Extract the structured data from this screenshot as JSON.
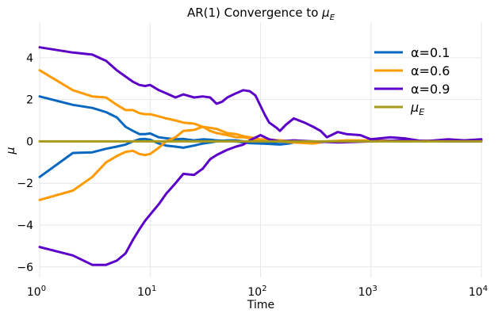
{
  "chart_data": {
    "type": "line",
    "title": {
      "main": "AR(1) Convergence to ",
      "math": "μ",
      "sub": "E"
    },
    "xlabel": "Time",
    "ylabel": "μ",
    "xscale": "log",
    "xlim": [
      1,
      10000
    ],
    "ylim": [
      -6.5,
      5.7
    ],
    "grid": true,
    "legend_position": "top-right",
    "x_ticks": [
      {
        "value": 1,
        "base": "10",
        "exp": "0"
      },
      {
        "value": 10,
        "base": "10",
        "exp": "1"
      },
      {
        "value": 100,
        "base": "10",
        "exp": "2"
      },
      {
        "value": 1000,
        "base": "10",
        "exp": "3"
      },
      {
        "value": 10000,
        "base": "10",
        "exp": "4"
      }
    ],
    "y_ticks": [
      {
        "value": -6,
        "label": "−6"
      },
      {
        "value": -4,
        "label": "−4"
      },
      {
        "value": -2,
        "label": "−2"
      },
      {
        "value": 0,
        "label": "0"
      },
      {
        "value": 2,
        "label": "2"
      },
      {
        "value": 4,
        "label": "4"
      }
    ],
    "series": [
      {
        "name": "α=0.1",
        "color": "#0868c0",
        "paths": [
          {
            "x": [
              1,
              2,
              3,
              4,
              5,
              6,
              7,
              8,
              9,
              10,
              12,
              14,
              17,
              20,
              25,
              30,
              35,
              40,
              50,
              60,
              70,
              80,
              100,
              120,
              150,
              180,
              200
            ],
            "y": [
              2.15,
              1.75,
              1.6,
              1.4,
              1.15,
              0.7,
              0.5,
              0.35,
              0.35,
              0.38,
              0.2,
              0.15,
              0.1,
              0.12,
              0.05,
              0.1,
              0.08,
              0.05,
              0.02,
              0.0,
              -0.05,
              -0.08,
              -0.1,
              -0.12,
              -0.15,
              -0.1,
              -0.05
            ]
          },
          {
            "x": [
              1,
              2,
              3,
              4,
              5,
              6,
              7,
              8,
              9,
              10,
              12,
              14,
              17,
              20,
              25,
              30,
              35,
              40,
              50,
              60,
              70,
              80,
              100,
              120,
              150,
              180,
              200
            ],
            "y": [
              -1.7,
              -0.55,
              -0.52,
              -0.35,
              -0.25,
              -0.15,
              0.0,
              0.1,
              0.12,
              0.08,
              -0.1,
              -0.2,
              -0.25,
              -0.3,
              -0.2,
              -0.1,
              -0.05,
              0.0,
              0.05,
              0.05,
              0.0,
              -0.05,
              -0.08,
              -0.05,
              -0.02,
              0.0,
              0.0
            ]
          }
        ]
      },
      {
        "name": "α=0.6",
        "color": "#ff9a00",
        "paths": [
          {
            "x": [
              1,
              2,
              3,
              4,
              5,
              6,
              7,
              8,
              9,
              10,
              12,
              14,
              17,
              20,
              25,
              30,
              35,
              40,
              50,
              60,
              70,
              80,
              100,
              150,
              200,
              300,
              400,
              600,
              1000,
              2000,
              5000,
              10000
            ],
            "y": [
              3.4,
              2.45,
              2.15,
              2.1,
              1.75,
              1.5,
              1.5,
              1.35,
              1.3,
              1.3,
              1.2,
              1.1,
              1.0,
              0.9,
              0.85,
              0.7,
              0.5,
              0.4,
              0.3,
              0.2,
              0.2,
              0.15,
              0.05,
              0.0,
              -0.05,
              -0.1,
              0.0,
              0.05,
              0.05,
              0.0,
              0.05,
              0.05
            ]
          },
          {
            "x": [
              1,
              2,
              3,
              4,
              5,
              6,
              7,
              8,
              9,
              10,
              12,
              14,
              17,
              20,
              25,
              30,
              35,
              40,
              50,
              60,
              70,
              80,
              100,
              150,
              200,
              300,
              400,
              600,
              1000,
              2000,
              5000,
              10000
            ],
            "y": [
              -2.8,
              -2.35,
              -1.7,
              -1.0,
              -0.7,
              -0.5,
              -0.45,
              -0.6,
              -0.65,
              -0.6,
              -0.3,
              0.0,
              0.2,
              0.5,
              0.55,
              0.7,
              0.65,
              0.6,
              0.4,
              0.35,
              0.25,
              0.2,
              0.1,
              0.05,
              0.0,
              -0.05,
              0.0,
              0.0,
              0.05,
              0.0,
              0.05,
              0.05
            ]
          }
        ]
      },
      {
        "name": "α=0.9",
        "color": "#5b00c8",
        "paths": [
          {
            "x": [
              1,
              2,
              3,
              4,
              5,
              6,
              7,
              8,
              9,
              10,
              12,
              14,
              17,
              20,
              25,
              30,
              35,
              40,
              45,
              50,
              60,
              70,
              80,
              90,
              100,
              110,
              120,
              140,
              150,
              170,
              200,
              250,
              300,
              350,
              400,
              500,
              600,
              800,
              1000,
              1500,
              2000,
              3000,
              5000,
              7000,
              10000
            ],
            "y": [
              4.5,
              4.25,
              4.15,
              3.85,
              3.4,
              3.1,
              2.85,
              2.7,
              2.65,
              2.7,
              2.45,
              2.3,
              2.1,
              2.25,
              2.1,
              2.15,
              2.1,
              1.8,
              1.9,
              2.1,
              2.3,
              2.45,
              2.4,
              2.2,
              1.7,
              1.25,
              0.9,
              0.65,
              0.5,
              0.8,
              1.1,
              0.9,
              0.7,
              0.5,
              0.2,
              0.45,
              0.35,
              0.3,
              0.1,
              0.2,
              0.15,
              0.0,
              0.1,
              0.05,
              0.1
            ]
          },
          {
            "x": [
              1,
              2,
              3,
              4,
              5,
              6,
              7,
              8,
              9,
              10,
              12,
              14,
              17,
              20,
              25,
              30,
              35,
              40,
              50,
              60,
              70,
              80,
              100,
              120,
              150,
              200,
              300,
              500,
              1000,
              2000,
              5000,
              10000
            ],
            "y": [
              -5.05,
              -5.45,
              -5.9,
              -5.9,
              -5.7,
              -5.35,
              -4.7,
              -4.2,
              -3.8,
              -3.5,
              -3.0,
              -2.5,
              -2.0,
              -1.55,
              -1.6,
              -1.3,
              -0.85,
              -0.65,
              -0.4,
              -0.25,
              -0.15,
              0.05,
              0.3,
              0.1,
              0.0,
              0.05,
              0.0,
              -0.05,
              0.0,
              0.05,
              0.0,
              0.0
            ]
          }
        ]
      },
      {
        "name": "μ_E",
        "label_math": "μ",
        "label_sub": "E",
        "color": "#a89a1a",
        "paths": [
          {
            "x": [
              1,
              10000
            ],
            "y": [
              0,
              0
            ]
          }
        ]
      }
    ]
  }
}
